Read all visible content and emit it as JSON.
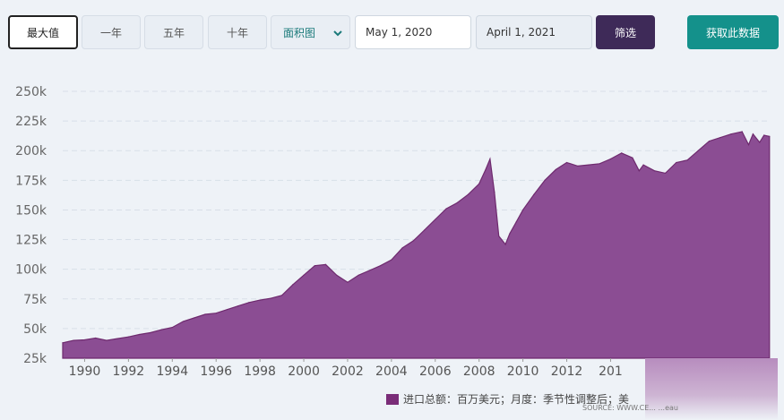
{
  "toolbar": {
    "max_label": "最大值",
    "one_year_label": "一年",
    "five_year_label": "五年",
    "ten_year_label": "十年",
    "chart_type_label": "面积图",
    "start_date": "May 1, 2020",
    "end_date": "April 1, 2021",
    "filter_label": "筛选",
    "fetch_label": "获取此数据"
  },
  "colors": {
    "accent_fill": "#8b4d93",
    "line": "#6e2a6e",
    "filter_button": "#3e2a58",
    "fetch_button": "#14918b"
  },
  "chart_data": {
    "type": "area",
    "title": "",
    "xlabel": "",
    "ylabel": "",
    "ylim": [
      25000,
      250000
    ],
    "xlim": [
      1989,
      2021.3
    ],
    "grid": true,
    "legend_position": "bottom-right",
    "y_ticks": [
      "25k",
      "50k",
      "75k",
      "100k",
      "125k",
      "150k",
      "175k",
      "200k",
      "225k",
      "250k"
    ],
    "x_ticks": [
      "1990",
      "1992",
      "1994",
      "1996",
      "1998",
      "2000",
      "2002",
      "2004",
      "2006",
      "2008",
      "2010",
      "2012",
      "201"
    ],
    "series": [
      {
        "name": "进口总额：百万美元；月度：季节性调整后；美",
        "x": [
          1989.0,
          1989.5,
          1990.0,
          1990.5,
          1991.0,
          1991.5,
          1992.0,
          1992.5,
          1993.0,
          1993.5,
          1994.0,
          1994.5,
          1995.0,
          1995.5,
          1996.0,
          1996.5,
          1997.0,
          1997.5,
          1998.0,
          1998.5,
          1999.0,
          1999.5,
          2000.0,
          2000.5,
          2001.0,
          2001.5,
          2002.0,
          2002.5,
          2003.0,
          2003.5,
          2004.0,
          2004.5,
          2005.0,
          2005.5,
          2006.0,
          2006.5,
          2007.0,
          2007.5,
          2008.0,
          2008.3,
          2008.5,
          2008.7,
          2008.9,
          2009.2,
          2009.4,
          2009.7,
          2010.0,
          2010.5,
          2011.0,
          2011.5,
          2012.0,
          2012.5,
          2013.0,
          2013.5,
          2014.0,
          2014.5,
          2015.0,
          2015.3,
          2015.5,
          2016.0,
          2016.5,
          2017.0,
          2017.5,
          2018.0,
          2018.5,
          2019.0,
          2019.5,
          2020.0,
          2020.3,
          2020.5,
          2020.8,
          2021.0,
          2021.25
        ],
        "values": [
          38000,
          40000,
          40500,
          42000,
          40000,
          41500,
          43000,
          45000,
          46500,
          49000,
          51000,
          56000,
          59000,
          62000,
          63000,
          66000,
          69000,
          72000,
          74000,
          75500,
          78000,
          87000,
          95000,
          103000,
          104000,
          95000,
          89000,
          95000,
          99000,
          103000,
          108000,
          118000,
          124000,
          133000,
          142000,
          151000,
          156000,
          163000,
          172000,
          184000,
          193000,
          165000,
          128000,
          121000,
          130000,
          140000,
          150000,
          163000,
          175000,
          184000,
          190000,
          187000,
          188000,
          189000,
          193000,
          198000,
          194000,
          183000,
          188000,
          183000,
          181000,
          190000,
          192000,
          200000,
          208000,
          211000,
          214000,
          216000,
          205000,
          214000,
          207000,
          213000,
          212000
        ]
      }
    ]
  },
  "legend_text": "进口总额：百万美元；月度：季节性调整后；美",
  "source_text": "SOURCE: WWW.CE... ...eau"
}
